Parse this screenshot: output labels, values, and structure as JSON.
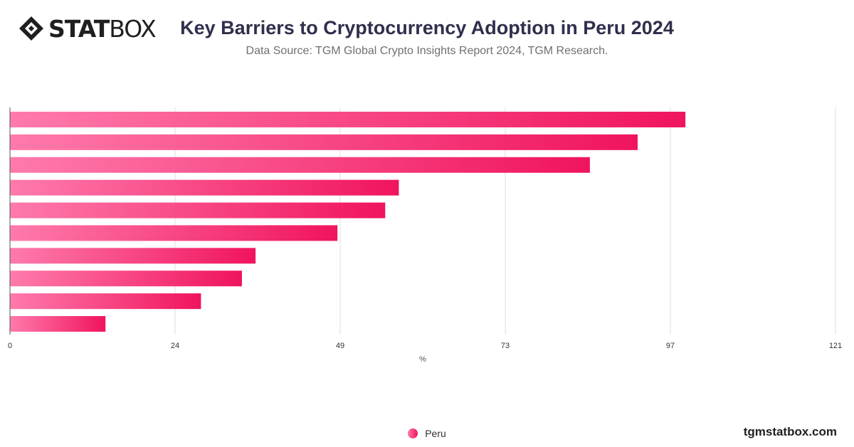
{
  "brand": {
    "logo_strong": "STAT",
    "logo_light": "BOX",
    "footer": "tgmstatbox.com"
  },
  "header": {
    "title": "Key Barriers to Cryptocurrency Adoption in Peru 2024",
    "subtitle": "Data Source: TGM Global Crypto Insights Report 2024, TGM Research."
  },
  "colors": {
    "bar_start": "#ff7aac",
    "bar_end": "#f0145e",
    "grid": "#dddddd"
  },
  "chart_data": {
    "type": "bar",
    "orientation": "horizontal",
    "categories": [
      "",
      "",
      "",
      "",
      "",
      "",
      "",
      "",
      "",
      ""
    ],
    "series": [
      {
        "name": "Peru",
        "values": [
          99,
          92,
          85,
          57,
          55,
          48,
          36,
          34,
          28,
          14
        ]
      }
    ],
    "xlabel": "%",
    "xlim": [
      0,
      121
    ],
    "xticks": [
      "0",
      "24",
      "49",
      "73",
      "97",
      "121"
    ],
    "grid": true,
    "legend": {
      "position": "bottom",
      "label": "Peru"
    }
  }
}
